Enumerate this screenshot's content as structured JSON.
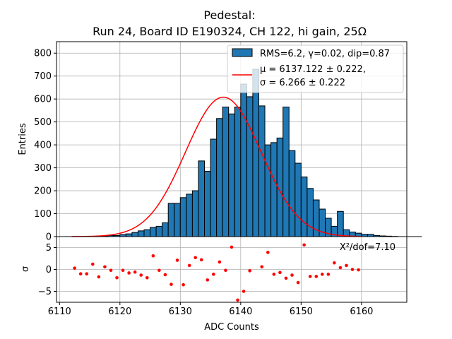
{
  "chart_data": {
    "type": "bar",
    "title_line1": "Pedestal:",
    "title_line2": "Run 24, Board ID E190324, CH 122, hi gain, 25Ω",
    "xlabel": "ADC Counts",
    "ylabel_top": "Entries",
    "ylabel_bottom": "σ",
    "xlim": [
      6109.5,
      6167.5
    ],
    "ylim_top": [
      0,
      850
    ],
    "ylim_bottom": [
      -7.5,
      7.5
    ],
    "xticks": [
      6110,
      6120,
      6130,
      6140,
      6150,
      6160
    ],
    "yticks_top": [
      0,
      100,
      200,
      300,
      400,
      500,
      600,
      700,
      800
    ],
    "yticks_bottom": [
      -5,
      0,
      5
    ],
    "grid": true,
    "legend_position": "top-right",
    "legend": {
      "hist_label": "RMS=6.2, γ=0.02, dip=0.87",
      "fit_line1": "μ = 6137.122 ± 0.222,",
      "fit_line2": "σ = 6.266 ± 0.222"
    },
    "chi2_text": "X²/dof=7.10",
    "bin_edges_start": 6112,
    "bin_width": 1,
    "histogram_values": [
      0,
      0,
      0,
      1,
      2,
      3,
      5,
      5,
      9,
      12,
      18,
      25,
      30,
      40,
      45,
      60,
      145,
      145,
      170,
      185,
      200,
      330,
      285,
      425,
      515,
      565,
      535,
      565,
      665,
      610,
      730,
      570,
      400,
      410,
      430,
      565,
      375,
      320,
      260,
      210,
      160,
      120,
      80,
      45,
      110,
      30,
      20,
      15,
      10,
      10,
      5,
      3,
      2,
      1,
      0,
      0,
      0,
      0
    ],
    "fit": {
      "type": "gaussian",
      "mu": 6137.122,
      "sigma": 6.266,
      "amplitude": 608,
      "x_range": [
        6112,
        6160
      ]
    },
    "residuals_x": [
      6112.5,
      6113.5,
      6114.5,
      6115.5,
      6116.5,
      6117.5,
      6118.5,
      6119.5,
      6120.5,
      6121.5,
      6122.5,
      6123.5,
      6124.5,
      6125.5,
      6126.5,
      6127.5,
      6128.5,
      6129.5,
      6130.5,
      6131.5,
      6132.5,
      6133.5,
      6134.5,
      6135.5,
      6136.5,
      6137.5,
      6138.5,
      6139.5,
      6140.5,
      6141.5,
      6142.5,
      6143.5,
      6144.5,
      6145.5,
      6146.5,
      6147.5,
      6148.5,
      6149.5,
      6150.5,
      6151.5,
      6152.5,
      6153.5,
      6154.5,
      6155.5,
      6156.5,
      6157.5,
      6158.5,
      6159.5
    ],
    "residuals_y": [
      0.3,
      -1.0,
      -1.0,
      1.2,
      -1.7,
      0.6,
      -0.2,
      -1.9,
      -0.2,
      -0.8,
      -0.6,
      -1.3,
      -1.9,
      3.1,
      -0.2,
      -1.2,
      -3.4,
      2.1,
      -3.5,
      0.9,
      2.7,
      2.2,
      -2.4,
      -1.1,
      1.7,
      -0.2,
      5.1,
      -7.0,
      -5.0,
      -0.3,
      7.8,
      0.6,
      3.9,
      -1.1,
      -0.7,
      -2.0,
      -1.3,
      -3.0,
      5.6,
      -1.6,
      -1.6,
      -1.1,
      -1.1,
      1.5,
      0.4,
      0.9,
      0.0,
      -0.1
    ],
    "colors": {
      "bars": "#1f77b4",
      "fit_line": "#ff0000",
      "residual_points": "#ff0000",
      "grid": "#b0b0b0"
    }
  }
}
